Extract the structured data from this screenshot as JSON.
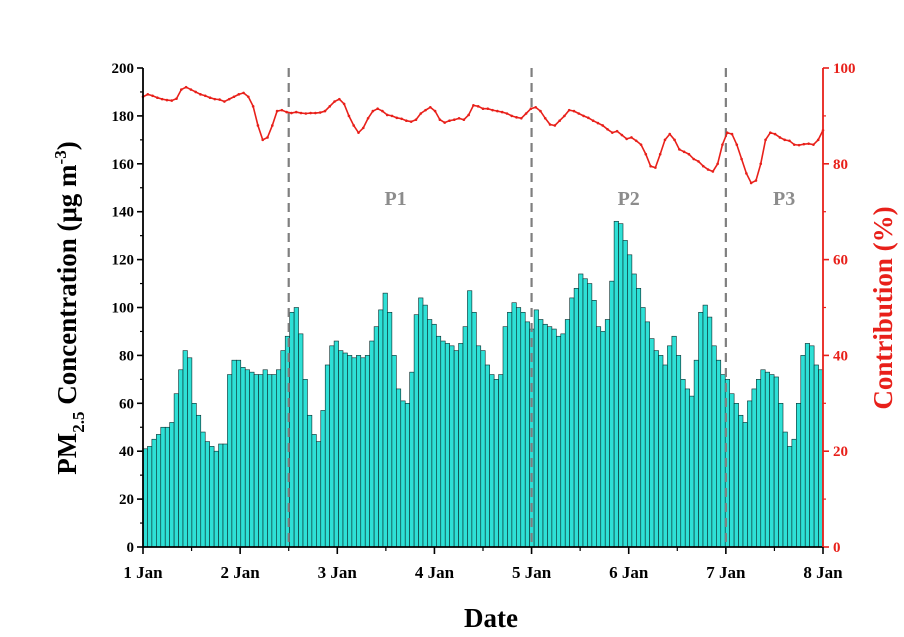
{
  "chart_data": {
    "type": "bar+line",
    "x_axis": {
      "label": "Date",
      "tick_labels": [
        "1 Jan",
        "2 Jan",
        "3 Jan",
        "4 Jan",
        "5 Jan",
        "6 Jan",
        "7 Jan",
        "8 Jan"
      ],
      "range_days": [
        0,
        7
      ]
    },
    "y_left": {
      "label_main": "PM",
      "label_sub": "2.5",
      "label_rest": " Concentration (μg m",
      "label_sup": "-3",
      "label_close": ")",
      "range": [
        0,
        200
      ],
      "ticks": [
        "0",
        "20",
        "40",
        "60",
        "80",
        "100",
        "120",
        "140",
        "160",
        "180",
        "200"
      ]
    },
    "y_right": {
      "label": "Contribution (%)",
      "range": [
        0,
        100
      ],
      "ticks": [
        "0",
        "20",
        "40",
        "60",
        "80",
        "100"
      ]
    },
    "colors": {
      "bar_fill": "#2ee0d6",
      "bar_stroke": "#0a2a2a",
      "line": "#e8201a",
      "right_axis": "#e8201a",
      "divider": "#7f7f7f",
      "period_label": "#8c8c8c"
    },
    "periods": [
      {
        "label": "P1",
        "x": 2.6
      },
      {
        "label": "P2",
        "x": 5.0
      },
      {
        "label": "P3",
        "x": 6.6
      }
    ],
    "dividers": [
      1.5,
      4.0,
      6.0
    ],
    "bars": [
      41,
      42,
      45,
      47,
      50,
      50,
      52,
      64,
      74,
      82,
      79,
      60,
      55,
      48,
      44,
      42,
      40,
      43,
      43,
      72,
      78,
      78,
      75,
      74,
      73,
      72,
      72,
      74,
      72,
      72,
      74,
      82,
      88,
      98,
      100,
      89,
      70,
      55,
      47,
      44,
      57,
      76,
      84,
      86,
      82,
      81,
      80,
      79,
      80,
      79,
      80,
      86,
      92,
      99,
      106,
      98,
      80,
      66,
      61,
      60,
      73,
      97,
      104,
      101,
      95,
      93,
      88,
      86,
      85,
      84,
      82,
      85,
      92,
      107,
      98,
      84,
      82,
      76,
      72,
      70,
      72,
      92,
      98,
      102,
      100,
      98,
      94,
      91,
      99,
      95,
      93,
      92,
      91,
      88,
      89,
      95,
      104,
      108,
      114,
      112,
      110,
      103,
      92,
      90,
      95,
      111,
      136,
      135,
      128,
      122,
      114,
      108,
      100,
      94,
      87,
      82,
      80,
      76,
      84,
      88,
      80,
      70,
      66,
      63,
      78,
      98,
      101,
      96,
      84,
      78,
      72,
      70,
      64,
      60,
      55,
      52,
      61,
      66,
      70,
      74,
      73,
      72,
      71,
      60,
      48,
      42,
      45,
      60,
      80,
      85,
      84,
      76,
      74
    ],
    "line": [
      94,
      94.5,
      94.2,
      93.8,
      93.5,
      93.3,
      93.2,
      93.6,
      95.5,
      96,
      95.5,
      95,
      94.5,
      94.2,
      93.8,
      93.5,
      93.4,
      93,
      93.5,
      94,
      94.5,
      94.8,
      94,
      92,
      88,
      85,
      85.5,
      88,
      91,
      91.2,
      90.8,
      90.6,
      90.8,
      90.6,
      90.5,
      90.6,
      90.6,
      90.7,
      91,
      92,
      93,
      93.5,
      92.5,
      90,
      88,
      86.5,
      87.5,
      89.5,
      91,
      91.5,
      91,
      90.2,
      90,
      89.6,
      89.4,
      89,
      88.8,
      89.2,
      90.5,
      91.2,
      91.8,
      91,
      89.2,
      88.6,
      89,
      89.2,
      89.5,
      89.2,
      90.2,
      92.2,
      92,
      91.5,
      91.5,
      91.2,
      91,
      90.8,
      90.5,
      90,
      89.7,
      89.5,
      90.5,
      91.5,
      91.8,
      91,
      89.5,
      88.2,
      88,
      89,
      90,
      91.2,
      91,
      90.5,
      90,
      89.6,
      89,
      88.5,
      88,
      87.2,
      86.5,
      86.8,
      86,
      85.2,
      85.5,
      84.8,
      84,
      82,
      79.5,
      79.2,
      82,
      85,
      86.2,
      85,
      83,
      82.5,
      82,
      81,
      80.5,
      79.5,
      78.8,
      78.4,
      80,
      84,
      86.5,
      86.2,
      84,
      81,
      78,
      76,
      76.5,
      80,
      85,
      86.5,
      86.2,
      85.5,
      85,
      84.8,
      84,
      83.9,
      84.1,
      84.2,
      84,
      85,
      87
    ]
  }
}
